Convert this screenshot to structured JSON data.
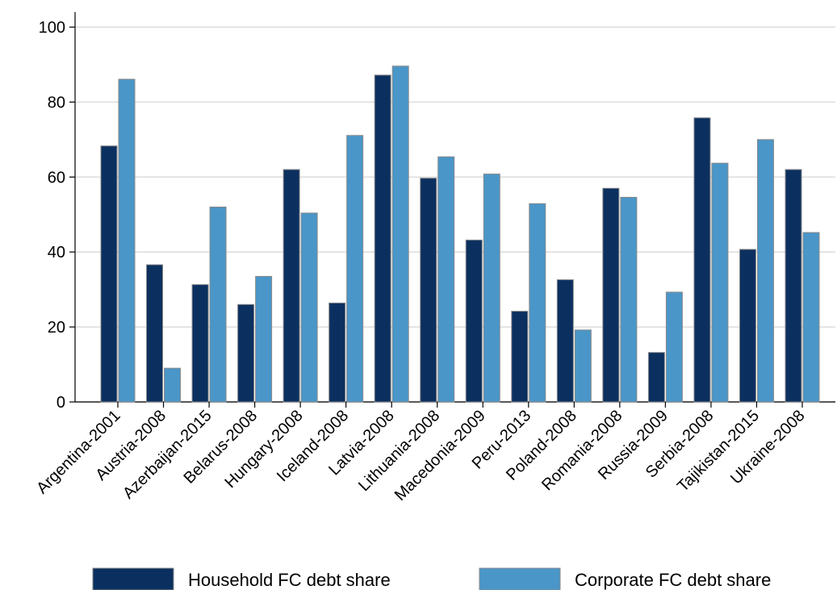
{
  "chart_data": {
    "type": "bar",
    "categories": [
      "Argentina-2001",
      "Austria-2008",
      "Azerbaijan-2015",
      "Belarus-2008",
      "Hungary-2008",
      "Iceland-2008",
      "Latvia-2008",
      "Lithuania-2008",
      "Macedonia-2009",
      "Peru-2013",
      "Poland-2008",
      "Romania-2008",
      "Russia-2009",
      "Serbia-2008",
      "Tajikistan-2015",
      "Ukraine-2008"
    ],
    "series": [
      {
        "name": "Household FC debt share",
        "color": "#0b3060",
        "values": [
          68.3,
          36.6,
          31.3,
          26,
          62,
          26.4,
          87.2,
          59.7,
          43.2,
          24.2,
          32.6,
          57,
          13.2,
          75.8,
          40.7,
          62
        ]
      },
      {
        "name": "Corporate FC debt share",
        "color": "#4a96c8",
        "values": [
          86.1,
          9,
          52,
          33.5,
          50.4,
          71.1,
          89.6,
          65.4,
          60.8,
          52.9,
          19.2,
          54.6,
          29.3,
          63.7,
          70,
          45.2
        ]
      }
    ],
    "ylim": [
      0,
      104
    ],
    "yticks": [
      0,
      20,
      40,
      60,
      80,
      100
    ],
    "grid": true,
    "legend": "bottom"
  }
}
